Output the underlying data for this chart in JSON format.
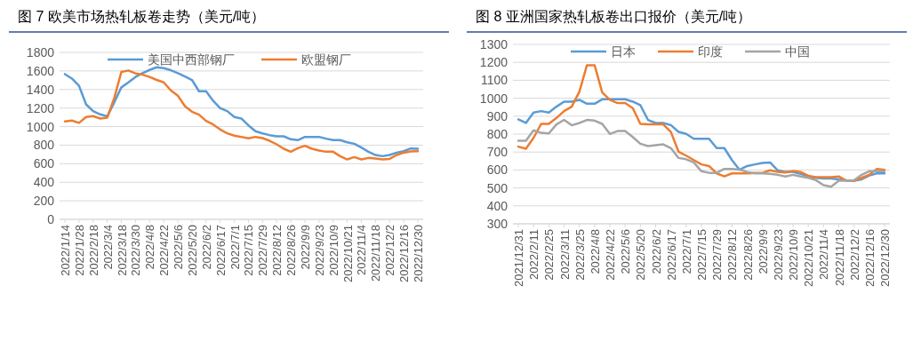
{
  "chart_data": [
    {
      "type": "line",
      "title": "图 7   欧美市场热轧板卷走势（美元/吨）",
      "categories": [
        "2022/1/14",
        null,
        "2022/1/28",
        null,
        "2022/2/18",
        null,
        "2022/3/4",
        null,
        "2022/3/18",
        null,
        "2022/3/30",
        null,
        "2022/4/8",
        null,
        "2022/4/22",
        null,
        "2022/5/6",
        null,
        "2022/5/20",
        null,
        "2022/6/2",
        null,
        "2022/6/17",
        null,
        "2022/7/1",
        null,
        "2022/7/15",
        null,
        "2022/7/29",
        null,
        "2022/8/12",
        null,
        "2022/8/26",
        null,
        "2022/9/9",
        null,
        "2022/9/23",
        null,
        "2022/10/9",
        null,
        "2022/10/21",
        null,
        "2022/11/4",
        null,
        "2022/11/18",
        null,
        "2022/12/2",
        null,
        "2022/12/16",
        null,
        "2022/12/30"
      ],
      "series": [
        {
          "name": "美国中西部钢厂",
          "color": "#5b9bd5",
          "values": [
            1566,
            1518,
            1440,
            1240,
            1167,
            1132,
            1110,
            1263,
            1423,
            1477,
            1535,
            1576,
            1611,
            1640,
            1630,
            1608,
            1576,
            1541,
            1503,
            1381,
            1381,
            1279,
            1199,
            1167,
            1103,
            1087,
            1013,
            950,
            927,
            908,
            895,
            895,
            863,
            854,
            889,
            889,
            889,
            870,
            854,
            854,
            831,
            815,
            774,
            729,
            694,
            681,
            694,
            719,
            735,
            764,
            760
          ]
        },
        {
          "name": "欧盟钢厂",
          "color": "#ed7d31",
          "values": [
            1055,
            1065,
            1040,
            1103,
            1113,
            1087,
            1097,
            1311,
            1589,
            1605,
            1573,
            1560,
            1535,
            1503,
            1477,
            1391,
            1333,
            1221,
            1160,
            1129,
            1061,
            1023,
            969,
            927,
            902,
            889,
            873,
            889,
            876,
            847,
            809,
            761,
            729,
            767,
            793,
            761,
            742,
            729,
            729,
            681,
            646,
            671,
            646,
            662,
            655,
            646,
            652,
            694,
            719,
            732,
            735
          ]
        }
      ],
      "ylim": [
        0,
        1800
      ],
      "yticks": [
        0,
        200,
        400,
        600,
        800,
        1000,
        1200,
        1400,
        1600,
        1800
      ],
      "grid": "y",
      "legend": "top",
      "marker": "none",
      "line_style": "solid"
    },
    {
      "type": "line",
      "title": "图 8   亚洲国家热轧板卷出口报价（美元/吨）",
      "categories": [
        "2021/12/31",
        null,
        "2022/2/11",
        null,
        "2022/2/25",
        null,
        "2022/3/11",
        null,
        "2022/3/25",
        null,
        "2022/4/8",
        null,
        "2022/4/22",
        null,
        "2022/5/6",
        null,
        "2022/5/20",
        null,
        "2022/6/2",
        null,
        "2022/6/17",
        null,
        "2022/7/1",
        null,
        "2022/7/15",
        null,
        "2022/7/29",
        null,
        "2022/8/12",
        null,
        "2022/8/26",
        null,
        "2022/9/9",
        null,
        "2022/9/23",
        null,
        "2022/10/9",
        null,
        "2022/10/21",
        null,
        "2022/11/4",
        null,
        "2022/11/18",
        null,
        "2022/12/2",
        null,
        "2022/12/16",
        null,
        "2022/12/30"
      ],
      "series": [
        {
          "name": "日本",
          "color": "#5b9bd5",
          "values": [
            882,
            862,
            920,
            928,
            920,
            953,
            981,
            981,
            991,
            969,
            969,
            994,
            994,
            994,
            994,
            981,
            961,
            879,
            862,
            862,
            850,
            812,
            801,
            774,
            774,
            774,
            722,
            722,
            655,
            601,
            622,
            631,
            639,
            642,
            598,
            589,
            589,
            578,
            564,
            556,
            553,
            553,
            548,
            543,
            540,
            548,
            569,
            581,
            581
          ]
        },
        {
          "name": "印度",
          "color": "#ed7d31",
          "values": [
            730,
            718,
            779,
            857,
            857,
            890,
            928,
            953,
            1036,
            1184,
            1184,
            1032,
            991,
            973,
            973,
            945,
            857,
            854,
            854,
            854,
            812,
            702,
            680,
            655,
            631,
            622,
            581,
            564,
            581,
            581,
            581,
            584,
            584,
            598,
            589,
            586,
            594,
            589,
            568,
            560,
            560,
            560,
            564,
            540,
            540,
            556,
            573,
            606,
            601
          ]
        },
        {
          "name": "中国",
          "color": "#a5a5a5",
          "values": [
            763,
            763,
            821,
            807,
            804,
            854,
            879,
            849,
            862,
            879,
            875,
            857,
            801,
            817,
            817,
            784,
            746,
            733,
            738,
            743,
            722,
            667,
            660,
            642,
            593,
            584,
            584,
            606,
            606,
            602,
            589,
            581,
            581,
            578,
            573,
            564,
            573,
            564,
            556,
            543,
            515,
            507,
            540,
            540,
            543,
            573,
            593,
            593,
            593
          ]
        }
      ],
      "ylim": [
        300,
        1300
      ],
      "yticks": [
        300,
        400,
        500,
        600,
        700,
        800,
        900,
        1000,
        1100,
        1200,
        1300
      ],
      "grid": "y",
      "legend": "top",
      "marker": "none",
      "line_style": "solid"
    }
  ]
}
